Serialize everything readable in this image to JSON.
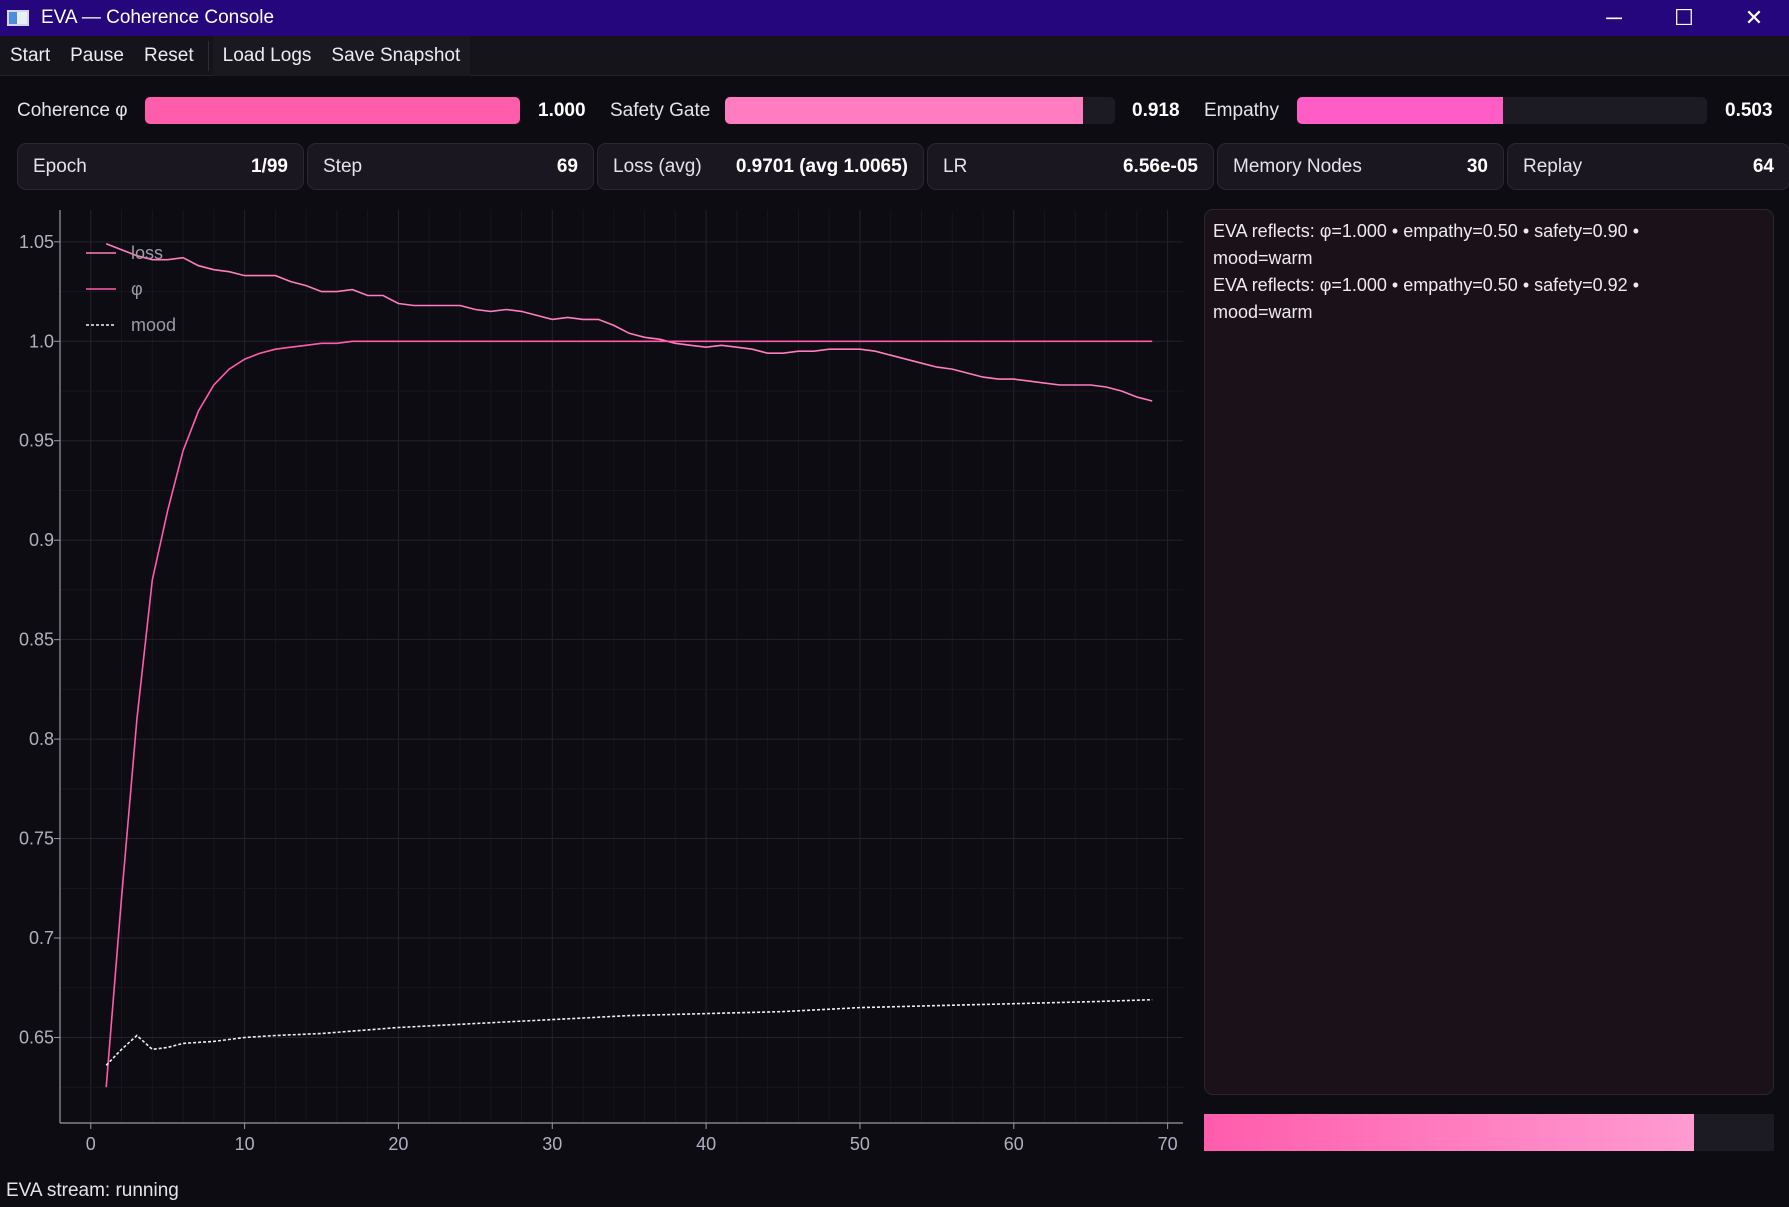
{
  "window": {
    "title": "EVA — Coherence Console",
    "icon": "app-window-icon"
  },
  "window_controls": {
    "minimize": "─",
    "maximize": "☐",
    "close": "✕"
  },
  "menu": {
    "start": "Start",
    "pause": "Pause",
    "reset": "Reset",
    "load_logs": "Load Logs",
    "save_snapshot": "Save Snapshot"
  },
  "gauges": {
    "coherence": {
      "label": "Coherence φ",
      "value_text": "1.000",
      "fraction": 1.0,
      "color": "#ff5cac"
    },
    "safety": {
      "label": "Safety Gate",
      "value_text": "0.918",
      "fraction": 0.918,
      "color": "#ff7cc0"
    },
    "empathy": {
      "label": "Empathy",
      "value_text": "0.503",
      "fraction": 0.503,
      "color": "#ff5cc6"
    }
  },
  "stats": {
    "epoch": {
      "label": "Epoch",
      "value": "1/99"
    },
    "step": {
      "label": "Step",
      "value": "69"
    },
    "loss": {
      "label": "Loss (avg)",
      "value": "0.9701 (avg 1.0065)"
    },
    "lr": {
      "label": "LR",
      "value": "6.56e-05"
    },
    "memory": {
      "label": "Memory Nodes",
      "value": "30"
    },
    "replay": {
      "label": "Replay",
      "value": "64"
    }
  },
  "log": {
    "lines": [
      "EVA reflects: φ=1.000 • empathy=0.50 • safety=0.90 •",
      "mood=warm",
      "EVA reflects: φ=1.000 • empathy=0.50 • safety=0.92 •",
      "mood=warm"
    ]
  },
  "progress": {
    "fraction": 0.86
  },
  "status": {
    "text": "EVA stream: running"
  },
  "chart_data": {
    "type": "line",
    "title": "",
    "xlabel": "",
    "ylabel": "",
    "xlim": [
      -2,
      71
    ],
    "ylim": [
      0.607,
      1.066
    ],
    "x_ticks": [
      "0",
      "10",
      "20",
      "30",
      "40",
      "50",
      "60",
      "70"
    ],
    "y_ticks": [
      "0.65",
      "0.7",
      "0.75",
      "0.8",
      "0.85",
      "0.9",
      "0.95",
      "1.0",
      "1.05"
    ],
    "grid": true,
    "legend_position": "top-left",
    "series": [
      {
        "name": "loss",
        "color": "#ff7cc0",
        "dash": "solid",
        "x": [
          1,
          2,
          3,
          4,
          5,
          6,
          7,
          8,
          9,
          10,
          11,
          12,
          13,
          14,
          15,
          16,
          17,
          18,
          19,
          20,
          21,
          22,
          23,
          24,
          25,
          26,
          27,
          28,
          29,
          30,
          31,
          32,
          33,
          34,
          35,
          36,
          37,
          38,
          39,
          40,
          41,
          42,
          43,
          44,
          45,
          46,
          47,
          48,
          49,
          50,
          51,
          52,
          53,
          54,
          55,
          56,
          57,
          58,
          59,
          60,
          61,
          62,
          63,
          64,
          65,
          66,
          67,
          68,
          69
        ],
        "values": [
          1.049,
          1.046,
          1.043,
          1.041,
          1.041,
          1.042,
          1.038,
          1.036,
          1.035,
          1.033,
          1.033,
          1.033,
          1.03,
          1.028,
          1.025,
          1.025,
          1.026,
          1.023,
          1.023,
          1.019,
          1.018,
          1.018,
          1.018,
          1.018,
          1.016,
          1.015,
          1.016,
          1.015,
          1.013,
          1.011,
          1.012,
          1.011,
          1.011,
          1.008,
          1.004,
          1.002,
          1.001,
          0.999,
          0.998,
          0.997,
          0.998,
          0.997,
          0.996,
          0.994,
          0.994,
          0.995,
          0.995,
          0.996,
          0.996,
          0.996,
          0.995,
          0.993,
          0.991,
          0.989,
          0.987,
          0.986,
          0.984,
          0.982,
          0.981,
          0.981,
          0.98,
          0.979,
          0.978,
          0.978,
          0.978,
          0.977,
          0.975,
          0.972,
          0.97
        ]
      },
      {
        "name": "φ",
        "color": "#ff5cac",
        "dash": "solid",
        "x": [
          1,
          2,
          3,
          4,
          5,
          6,
          7,
          8,
          9,
          10,
          11,
          12,
          13,
          14,
          15,
          16,
          17,
          18,
          19,
          20,
          25,
          30,
          35,
          40,
          45,
          50,
          55,
          60,
          65,
          69
        ],
        "values": [
          0.625,
          0.72,
          0.81,
          0.88,
          0.915,
          0.945,
          0.965,
          0.978,
          0.986,
          0.991,
          0.994,
          0.996,
          0.997,
          0.998,
          0.999,
          0.999,
          1.0,
          1.0,
          1.0,
          1.0,
          1.0,
          1.0,
          1.0,
          1.0,
          1.0,
          1.0,
          1.0,
          1.0,
          1.0,
          1.0
        ]
      },
      {
        "name": "mood",
        "color": "#f2f0f6",
        "dash": "dashed",
        "x": [
          1,
          2,
          3,
          4,
          5,
          6,
          8,
          10,
          12,
          15,
          20,
          25,
          30,
          35,
          40,
          45,
          50,
          55,
          60,
          65,
          69
        ],
        "values": [
          0.636,
          0.644,
          0.651,
          0.644,
          0.645,
          0.647,
          0.648,
          0.65,
          0.651,
          0.652,
          0.655,
          0.657,
          0.659,
          0.661,
          0.662,
          0.663,
          0.665,
          0.666,
          0.667,
          0.668,
          0.669
        ]
      }
    ]
  }
}
